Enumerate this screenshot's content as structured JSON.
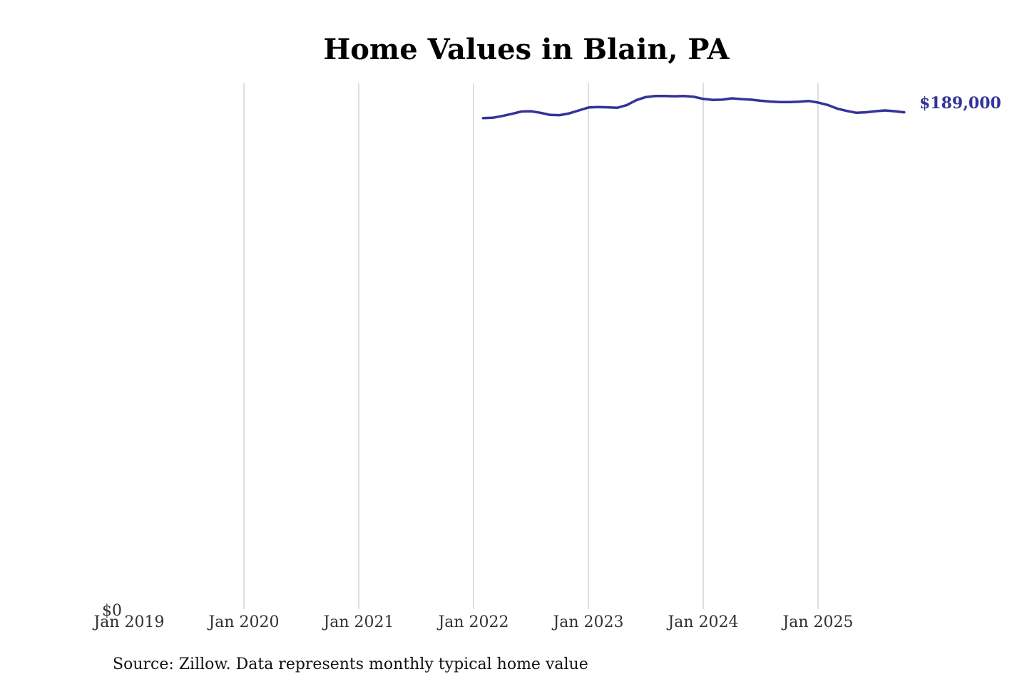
{
  "chart_data": {
    "type": "line",
    "title": "Home Values in Blain, PA",
    "xlabel": "",
    "ylabel": "",
    "x_ticks": [
      "Jan 2019",
      "Jan 2020",
      "Jan 2021",
      "Jan 2022",
      "Jan 2023",
      "Jan 2024",
      "Jan 2025"
    ],
    "y_ticks": [
      "$0"
    ],
    "xlim": [
      "2019-01",
      "2025-10"
    ],
    "ylim": [
      0,
      200000
    ],
    "grid": "vertical",
    "legend": "none",
    "line_color": "#33339a",
    "series": [
      {
        "x": [
          "2022-02",
          "2022-03",
          "2022-04",
          "2022-05",
          "2022-06",
          "2022-07",
          "2022-08",
          "2022-09",
          "2022-10",
          "2022-11",
          "2022-12",
          "2023-01",
          "2023-02",
          "2023-03",
          "2023-04",
          "2023-05",
          "2023-06",
          "2023-07",
          "2023-08",
          "2023-09",
          "2023-10",
          "2023-11",
          "2023-12",
          "2024-01",
          "2024-02",
          "2024-03",
          "2024-04",
          "2024-05",
          "2024-06",
          "2024-07",
          "2024-08",
          "2024-09",
          "2024-10",
          "2024-11",
          "2024-12",
          "2025-01",
          "2025-02",
          "2025-03",
          "2025-04",
          "2025-05",
          "2025-06",
          "2025-07",
          "2025-08",
          "2025-09",
          "2025-10"
        ],
        "values": [
          186800,
          186900,
          187600,
          188400,
          189300,
          189400,
          188800,
          188000,
          187900,
          188600,
          189700,
          190800,
          191000,
          190900,
          190700,
          191700,
          193600,
          194800,
          195200,
          195200,
          195100,
          195200,
          194900,
          194100,
          193700,
          193800,
          194300,
          194000,
          193800,
          193400,
          193100,
          192900,
          192900,
          193000,
          193300,
          192700,
          191800,
          190400,
          189500,
          188800,
          189000,
          189400,
          189700,
          189400,
          189000
        ]
      }
    ],
    "end_label": "$189,000"
  },
  "source_note": "Source: Zillow. Data represents monthly typical home value"
}
